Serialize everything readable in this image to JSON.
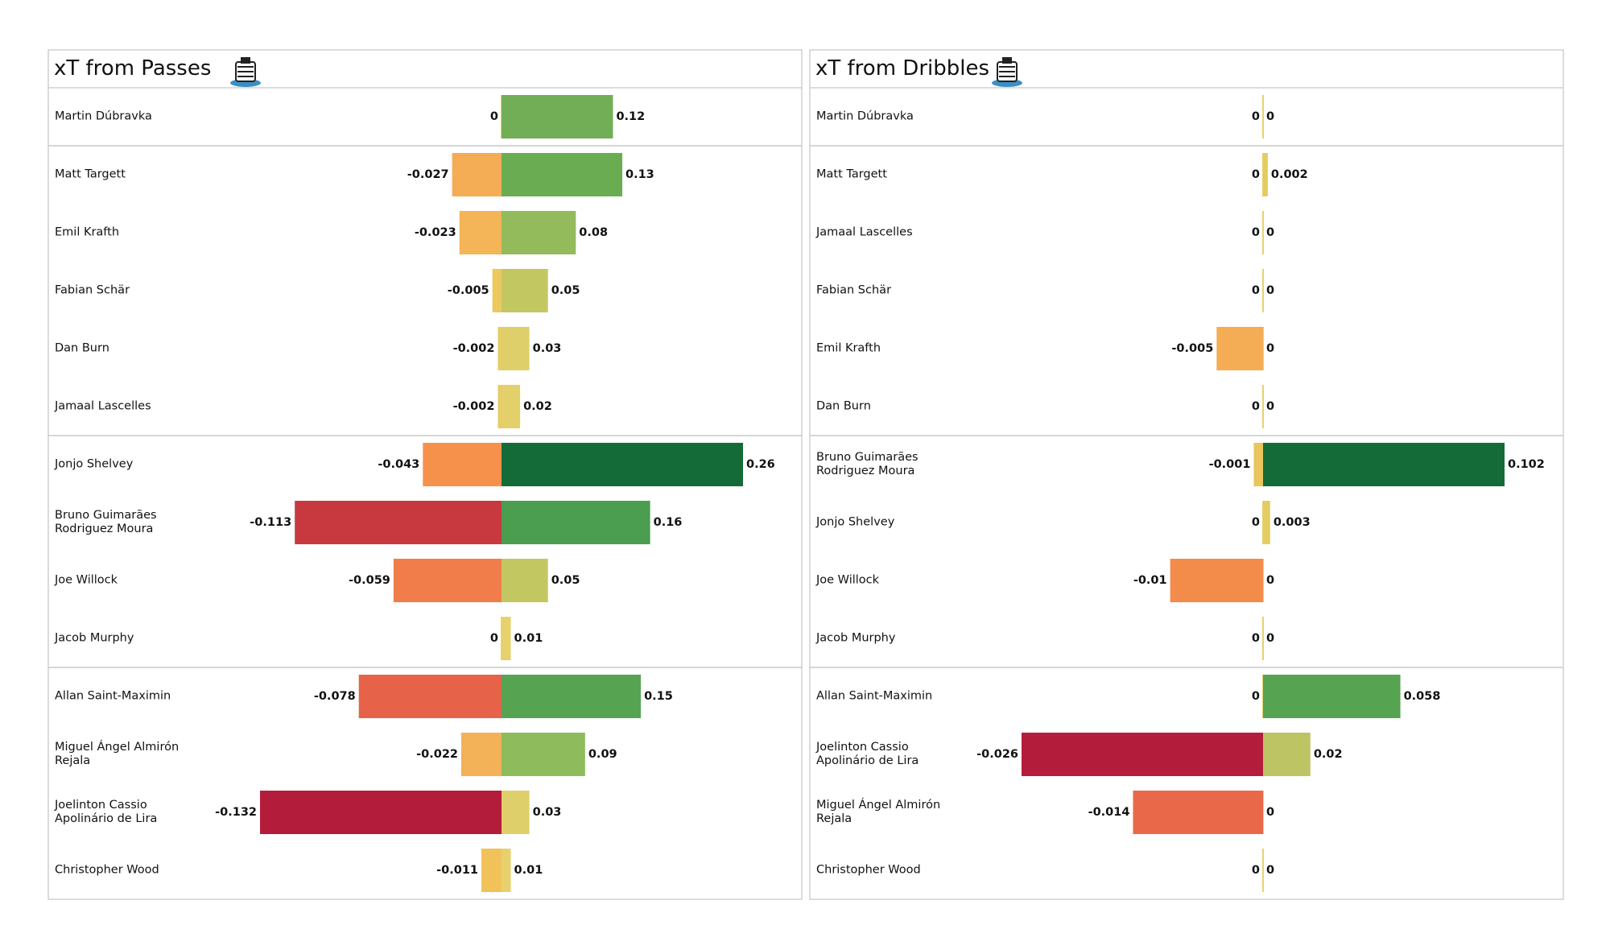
{
  "chart_data": [
    {
      "type": "diverging-bar",
      "title": "xT from Passes",
      "categories": [
        "Martin Dúbravka",
        "Matt Targett",
        "Emil Krafth",
        "Fabian Schär",
        "Dan Burn",
        "Jamaal Lascelles",
        "Jonjo Shelvey",
        "Bruno Guimarães\nRodriguez Moura",
        "Joe Willock",
        "Jacob Murphy",
        "Allan Saint-Maximin",
        "Miguel Ángel Almirón\nRejala",
        "Joelinton Cassio\nApolinário de Lira",
        "Christopher Wood"
      ],
      "xlim": [
        -0.132,
        0.26
      ],
      "series": [
        {
          "values": [
            0,
            -0.027,
            -0.023,
            -0.005,
            -0.002,
            -0.002,
            -0.043,
            -0.113,
            -0.059,
            0,
            -0.078,
            -0.022,
            -0.132,
            -0.011
          ],
          "colors": [
            "#e8d16d",
            "#f4ac55",
            "#f4b458",
            "#ecc95f",
            "#e7cd65",
            "#e7cd65",
            "#f6914c",
            "#c8393f",
            "#f07d4a",
            "#e8d16d",
            "#e66349",
            "#f3b158",
            "#b41c3c",
            "#f1c259"
          ]
        },
        {
          "values": [
            0.12,
            0.13,
            0.08,
            0.05,
            0.03,
            0.02,
            0.26,
            0.16,
            0.05,
            0.01,
            0.15,
            0.09,
            0.03,
            0.01
          ],
          "colors": [
            "#72ae55",
            "#6aac52",
            "#93bb5c",
            "#c3c762",
            "#dfcf6a",
            "#e3d06b",
            "#146b37",
            "#4b9d50",
            "#c3c762",
            "#e8d16d",
            "#56a352",
            "#8ebb5b",
            "#dfcf6a",
            "#e8d16d"
          ]
        }
      ]
    },
    {
      "type": "diverging-bar",
      "title": "xT from Dribbles",
      "categories": [
        "Martin Dúbravka",
        "Matt Targett",
        "Jamaal Lascelles",
        "Fabian Schär",
        "Emil Krafth",
        "Dan Burn",
        "Bruno Guimarães\nRodriguez Moura",
        "Jonjo Shelvey",
        "Joe Willock",
        "Jacob Murphy",
        "Allan Saint-Maximin",
        "Joelinton Cassio\nApolinário de Lira",
        "Miguel Ángel Almirón\nRejala",
        "Christopher Wood"
      ],
      "xlim": [
        -0.026,
        0.102
      ],
      "series": [
        {
          "values": [
            0,
            0,
            0,
            0,
            -0.005,
            0,
            -0.001,
            0,
            -0.01,
            0,
            0,
            -0.026,
            -0.014,
            0
          ],
          "colors": [
            "#e8d16d",
            "#e8d16d",
            "#e8d16d",
            "#e8d16d",
            "#f4ac55",
            "#e8d16d",
            "#e8c55d",
            "#e8d16d",
            "#f38b4b",
            "#e8d16d",
            "#e8d16d",
            "#b41c3c",
            "#e86849",
            "#e8d16d"
          ]
        },
        {
          "values": [
            0,
            0.002,
            0,
            0,
            0,
            0,
            0.102,
            0.003,
            0,
            0,
            0.058,
            0.02,
            0,
            0
          ],
          "colors": [
            "#e8d16d",
            "#e3cd60",
            "#e8d16d",
            "#e8d16d",
            "#e8d16d",
            "#e8d16d",
            "#146b37",
            "#e3cd60",
            "#e8d16d",
            "#e8d16d",
            "#56a352",
            "#bcc464",
            "#e8d16d",
            "#e8d16d"
          ]
        }
      ]
    }
  ]
}
